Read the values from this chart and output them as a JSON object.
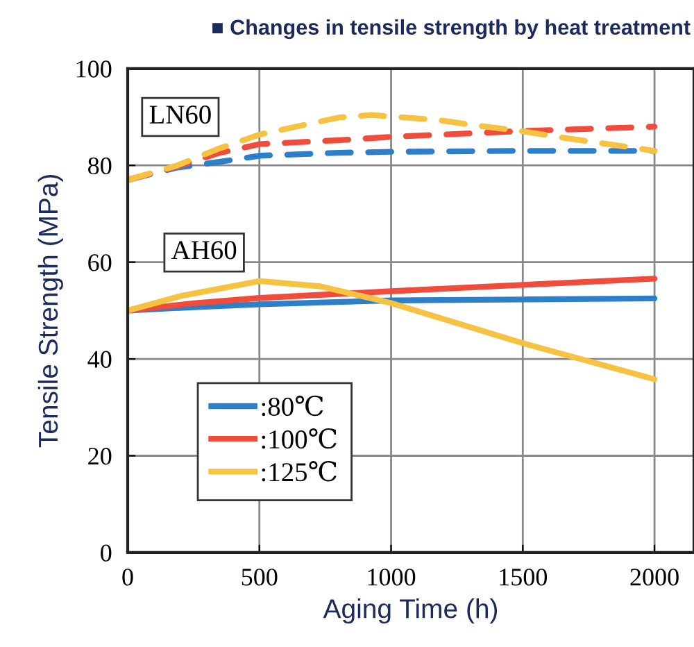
{
  "chart_data": {
    "type": "line",
    "title": "■ Changes in tensile strength by heat treatment",
    "xlabel": "Aging Time (h)",
    "ylabel": "Tensile Strength (MPa)",
    "xlim": [
      0,
      2150
    ],
    "xticks": [
      0,
      500,
      1000,
      1500,
      2000
    ],
    "ylim": [
      0,
      100
    ],
    "yticks": [
      0,
      20,
      40,
      60,
      80,
      100
    ],
    "grid": true,
    "legend": "bottom left",
    "annotations": [
      "LN60",
      "AH60"
    ],
    "series": [
      {
        "name": ":80℃",
        "color": "#2e7fc9",
        "line_style": "solid",
        "x": [
          0,
          250,
          500,
          1000,
          1500,
          2000
        ],
        "values": [
          50.0,
          50.7,
          51.3,
          52.1,
          52.3,
          52.5
        ]
      },
      {
        "name": ":100℃",
        "color": "#f04c3c",
        "line_style": "solid",
        "x": [
          0,
          250,
          500,
          1000,
          1500,
          2000
        ],
        "values": [
          50.0,
          51.5,
          52.6,
          54.0,
          55.3,
          56.6
        ]
      },
      {
        "name": ":125℃",
        "color": "#f5c242",
        "line_style": "solid",
        "x": [
          0,
          201,
          502,
          732,
          997,
          1497,
          2000
        ],
        "values": [
          50.0,
          53.0,
          56.1,
          55.0,
          51.6,
          43.3,
          35.8
        ]
      },
      {
        "color": "#2e7fc9",
        "line_style": "dashed",
        "x": [
          0,
          184,
          343,
          502,
          802,
          1000,
          1500,
          2000
        ],
        "values": [
          77.0,
          79.5,
          80.7,
          82.0,
          82.6,
          82.8,
          83.0,
          83.0
        ]
      },
      {
        "color": "#f04c3c",
        "line_style": "dashed",
        "x": [
          0,
          184,
          343,
          502,
          802,
          1000,
          1500,
          2000
        ],
        "values": [
          77.0,
          79.7,
          82.5,
          84.4,
          85.2,
          85.9,
          87.1,
          88.0
        ]
      },
      {
        "color": "#f5c242",
        "line_style": "dashed",
        "x": [
          0,
          184,
          343,
          502,
          802,
          926,
          1174,
          1315,
          1492,
          1668,
          2000
        ],
        "values": [
          77.0,
          79.9,
          83.4,
          86.4,
          89.9,
          90.4,
          89.4,
          88.3,
          87.1,
          85.6,
          83.0
        ]
      }
    ]
  }
}
